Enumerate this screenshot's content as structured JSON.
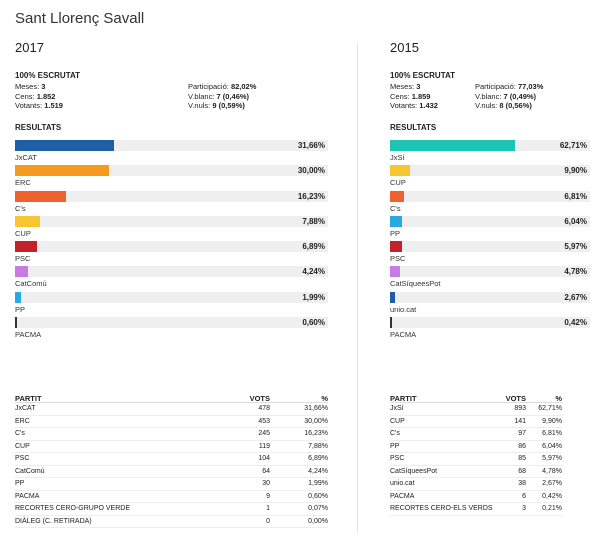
{
  "page": {
    "title": "Sant Llorenç Savall"
  },
  "elections": [
    {
      "year": "2017",
      "escrutat": "100% ESCRUTAT",
      "stats_left": [
        {
          "label": "Meses:",
          "value": "3"
        },
        {
          "label": "Cens:",
          "value": "1.852"
        },
        {
          "label": "Votants:",
          "value": "1.519"
        }
      ],
      "stats_right": [
        {
          "label": "Participació:",
          "value": "82,02%"
        },
        {
          "label": "V.blanc:",
          "value": "7 (0,46%)"
        },
        {
          "label": "V.nuls:",
          "value": "9 (0,59%)"
        }
      ],
      "results_title": "RESULTATS",
      "results": [
        {
          "party": "JxCAT",
          "pct": "31,66%",
          "share": 31.66,
          "color": "#1f5fa8"
        },
        {
          "party": "ERC",
          "pct": "30,00%",
          "share": 30.0,
          "color": "#f39a1f"
        },
        {
          "party": "C's",
          "pct": "16,23%",
          "share": 16.23,
          "color": "#f0622d"
        },
        {
          "party": "CUP",
          "pct": "7,88%",
          "share": 7.88,
          "color": "#f6c531"
        },
        {
          "party": "PSC",
          "pct": "6,89%",
          "share": 6.89,
          "color": "#c3222c"
        },
        {
          "party": "CatComú",
          "pct": "4,24%",
          "share": 4.24,
          "color": "#c77be3"
        },
        {
          "party": "PP",
          "pct": "1,99%",
          "share": 1.99,
          "color": "#29a9e1"
        },
        {
          "party": "PACMA",
          "pct": "0,60%",
          "share": 0.6,
          "color": "#333333"
        }
      ],
      "table": {
        "headers": {
          "party": "PARTIT",
          "votes": "VOTS",
          "pct": "%"
        },
        "rows": [
          {
            "party": "JxCAT",
            "votes": "478",
            "pct": "31,66%"
          },
          {
            "party": "ERC",
            "votes": "453",
            "pct": "30,00%"
          },
          {
            "party": "C's",
            "votes": "245",
            "pct": "16,23%"
          },
          {
            "party": "CUP",
            "votes": "119",
            "pct": "7,88%"
          },
          {
            "party": "PSC",
            "votes": "104",
            "pct": "6,89%"
          },
          {
            "party": "CatComú",
            "votes": "64",
            "pct": "4,24%"
          },
          {
            "party": "PP",
            "votes": "30",
            "pct": "1,99%"
          },
          {
            "party": "PACMA",
            "votes": "9",
            "pct": "0,60%"
          },
          {
            "party": "RECORTES CERO-GRUPO VERDE",
            "votes": "1",
            "pct": "0,07%"
          },
          {
            "party": "DIÀLEG (C. RETIRADA)",
            "votes": "0",
            "pct": "0,00%"
          }
        ]
      }
    },
    {
      "year": "2015",
      "escrutat": "100% ESCRUTAT",
      "stats_left": [
        {
          "label": "Meses:",
          "value": "3"
        },
        {
          "label": "Cens:",
          "value": "1.859"
        },
        {
          "label": "Votants:",
          "value": "1.432"
        }
      ],
      "stats_right": [
        {
          "label": "Participació:",
          "value": "77,03%"
        },
        {
          "label": "V.blanc:",
          "value": "7 (0,49%)"
        },
        {
          "label": "V.nuls:",
          "value": "8 (0,56%)"
        }
      ],
      "results_title": "RESULTATS",
      "results": [
        {
          "party": "JxSí",
          "pct": "62,71%",
          "share": 62.71,
          "color": "#1ec4b4"
        },
        {
          "party": "CUP",
          "pct": "9,90%",
          "share": 9.9,
          "color": "#f6c531"
        },
        {
          "party": "C's",
          "pct": "6,81%",
          "share": 6.81,
          "color": "#f0622d"
        },
        {
          "party": "PP",
          "pct": "6,04%",
          "share": 6.04,
          "color": "#29a9e1"
        },
        {
          "party": "PSC",
          "pct": "5,97%",
          "share": 5.97,
          "color": "#c3222c"
        },
        {
          "party": "CatSíqueesPot",
          "pct": "4,78%",
          "share": 4.78,
          "color": "#c77be3"
        },
        {
          "party": "unio.cat",
          "pct": "2,67%",
          "share": 2.67,
          "color": "#1f5fa8"
        },
        {
          "party": "PACMA",
          "pct": "0,42%",
          "share": 0.42,
          "color": "#333333"
        }
      ],
      "table": {
        "headers": {
          "party": "PARTIT",
          "votes": "VOTS",
          "pct": "%"
        },
        "rows": [
          {
            "party": "JxSí",
            "votes": "893",
            "pct": "62,71%"
          },
          {
            "party": "CUP",
            "votes": "141",
            "pct": "9,90%"
          },
          {
            "party": "C's",
            "votes": "97",
            "pct": "6,81%"
          },
          {
            "party": "PP",
            "votes": "86",
            "pct": "6,04%"
          },
          {
            "party": "PSC",
            "votes": "85",
            "pct": "5,97%"
          },
          {
            "party": "CatSíqueesPot",
            "votes": "68",
            "pct": "4,78%"
          },
          {
            "party": "unio.cat",
            "votes": "38",
            "pct": "2,67%"
          },
          {
            "party": "PACMA",
            "votes": "6",
            "pct": "0,42%"
          },
          {
            "party": "RECORTES CERO-ELS VERDS",
            "votes": "3",
            "pct": "0,21%"
          }
        ]
      }
    }
  ]
}
